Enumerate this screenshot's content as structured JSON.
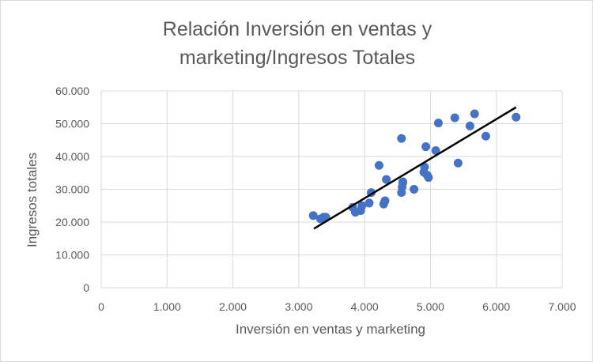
{
  "chart_data": {
    "type": "scatter",
    "title": "Relación Inversión en ventas y marketing/Ingresos Totales",
    "title_lines": [
      "Relación Inversión en ventas y",
      "marketing/Ingresos Totales"
    ],
    "xlabel": "Inversión en ventas y marketing",
    "ylabel": "Ingresos totales",
    "xlim": [
      0,
      7000
    ],
    "ylim": [
      0,
      60000
    ],
    "x_ticks": [
      "0",
      "1.000",
      "2.000",
      "3.000",
      "4.000",
      "5.000",
      "6.000",
      "7.000"
    ],
    "y_ticks": [
      "0",
      "10.000",
      "20.000",
      "30.000",
      "40.000",
      "50.000",
      "60.000"
    ],
    "grid": true,
    "legend": "none",
    "point_color": "#4472c4",
    "trendline_color": "#000000",
    "trendline": {
      "x": [
        3230,
        6300
      ],
      "y": [
        18000,
        55000
      ]
    },
    "series": [
      {
        "x": [
          3220,
          3330,
          3380,
          3410,
          3820,
          3860,
          3940,
          3960,
          4070,
          4100,
          4220,
          4290,
          4310,
          4330,
          4560,
          4560,
          4570,
          4580,
          4580,
          4750,
          4900,
          4910,
          4930,
          4950,
          4970,
          5080,
          5120,
          5370,
          5420,
          5600,
          5670,
          5840,
          6300
        ],
        "y": [
          22000,
          21000,
          21500,
          21500,
          24500,
          23000,
          23500,
          25000,
          25800,
          29000,
          37300,
          25500,
          26500,
          33000,
          45500,
          29000,
          30700,
          32300,
          32000,
          30000,
          35200,
          36800,
          43000,
          34300,
          33600,
          41800,
          50200,
          51800,
          38000,
          49300,
          53000,
          46200,
          52000
        ]
      }
    ]
  }
}
